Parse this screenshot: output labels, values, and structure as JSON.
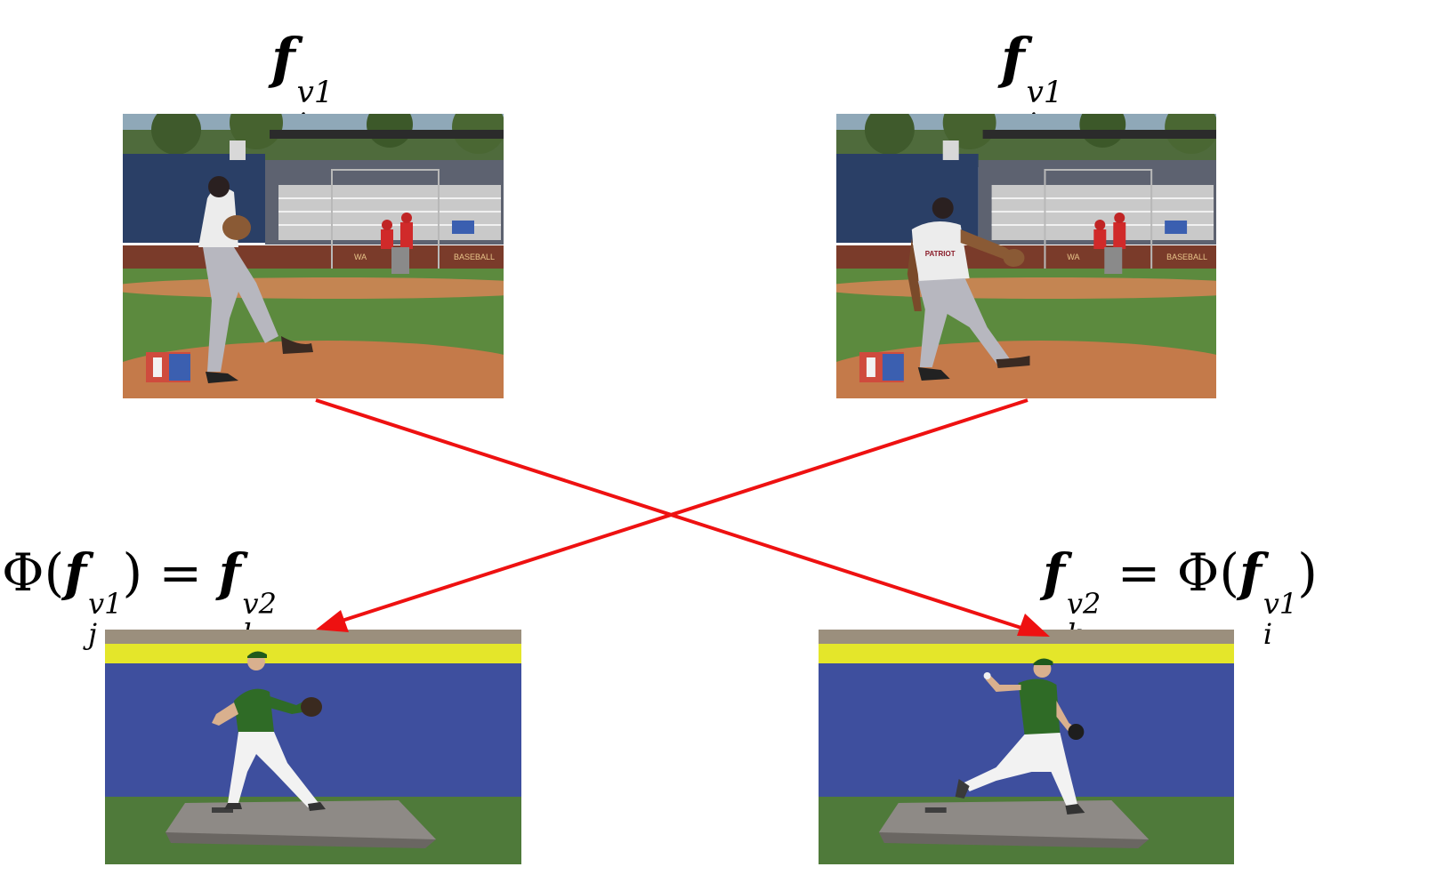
{
  "labels": {
    "top_left": {
      "base": "f",
      "sup": "v1",
      "sub": "i"
    },
    "top_right": {
      "base": "f",
      "sup": "v1",
      "sub": "j"
    },
    "bottom_left": {
      "phi": "Φ",
      "lparen": "(",
      "arg_base": "f",
      "arg_sup": "v1",
      "arg_sub": "j",
      "rparen": ")",
      "eq": "=",
      "res_base": "f",
      "res_sup": "v2",
      "res_sub": "l"
    },
    "bottom_right": {
      "res_base": "f",
      "res_sup": "v2",
      "res_sub": "k",
      "eq": "=",
      "phi": "Φ",
      "lparen": "(",
      "arg_base": "f",
      "arg_sup": "v1",
      "arg_sub": "i",
      "rparen": ")"
    }
  },
  "frames": {
    "top_left": {
      "scene": "outdoor baseball field, pitcher in wind-up",
      "banner": "WA",
      "banner2": "BASEBALL"
    },
    "top_right": {
      "scene": "outdoor baseball field, pitcher striding",
      "banner": "WA",
      "banner2": "BASEBALL",
      "shirt_text": "PATRIOT"
    },
    "bottom_left": {
      "scene": "indoor pitching mound, pitcher in stride"
    },
    "bottom_right": {
      "scene": "indoor pitching mound, pitcher releasing ball"
    }
  },
  "colors": {
    "arrow": "#ee1111"
  }
}
